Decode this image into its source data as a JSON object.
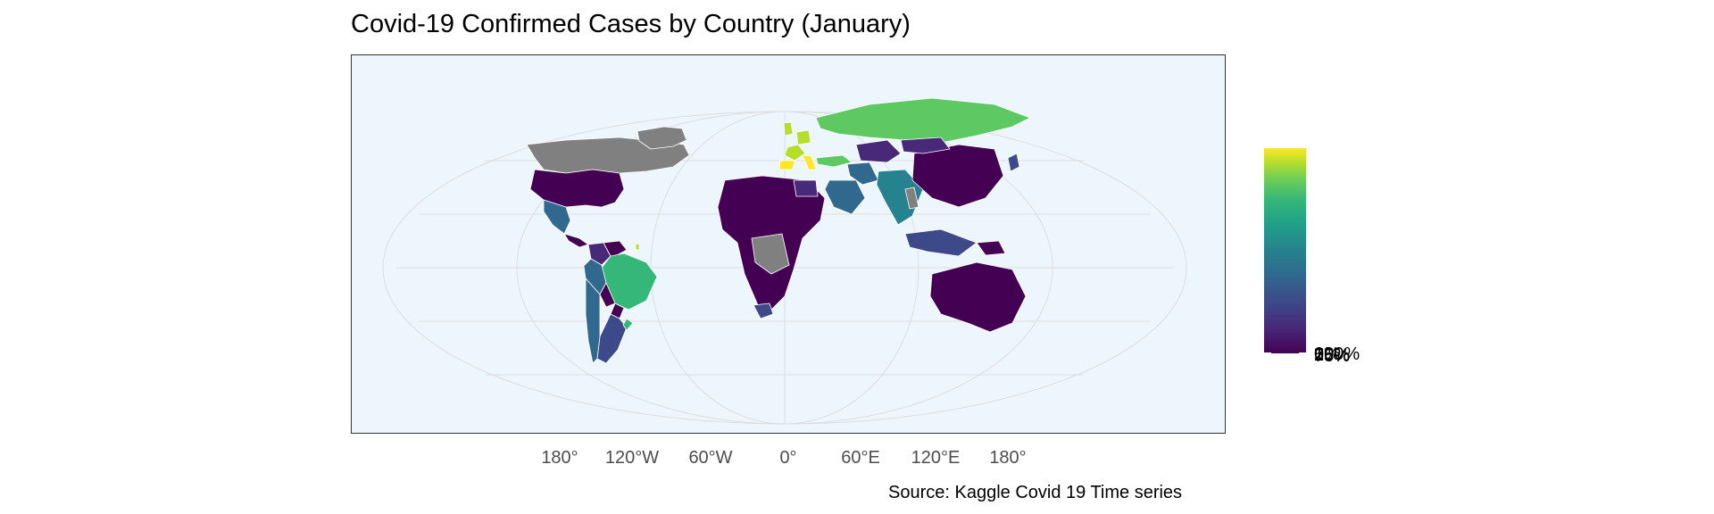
{
  "title": "Covid-19 Confirmed Cases by Country (January)",
  "caption": "Source: Kaggle Covid 19 Time series",
  "x_axis": {
    "tick_labels": [
      "180°",
      "120°W",
      "60°W",
      "0°",
      "60°E",
      "120°E",
      "180°"
    ]
  },
  "legend": {
    "tick_labels": [
      "0%",
      "25%",
      "50%",
      "75%",
      "100%"
    ],
    "colors": [
      "#440154",
      "#3b528b",
      "#21918c",
      "#5ec962",
      "#fde725"
    ]
  },
  "colors": {
    "ocean": "#eef6fd",
    "no_data": "#808080",
    "graticule": "#dddddd",
    "border": "#ffffff"
  },
  "chart_data": {
    "type": "heatmap",
    "map_type": "choropleth world map",
    "title": "Covid-19 Confirmed Cases by Country (January)",
    "caption": "Source: Kaggle Covid 19 Time series",
    "x_ticks": [
      "180°",
      "120°W",
      "60°W",
      "0°",
      "60°E",
      "120°E",
      "180°"
    ],
    "legend_labels": [
      "0%",
      "25%",
      "50%",
      "75%",
      "100%"
    ],
    "legend_position": "right",
    "regions": [
      {
        "name": "United States",
        "color": "#808080"
      },
      {
        "name": "Canada",
        "color": "#440154"
      },
      {
        "name": "Greenland",
        "color": "#808080"
      },
      {
        "name": "Mexico",
        "color": "#31688e"
      },
      {
        "name": "Central America",
        "color": "#440154"
      },
      {
        "name": "Colombia",
        "color": "#482878"
      },
      {
        "name": "Venezuela",
        "color": "#440154"
      },
      {
        "name": "Brazil",
        "color": "#35b779"
      },
      {
        "name": "Peru",
        "color": "#31688e"
      },
      {
        "name": "Bolivia",
        "color": "#440154"
      },
      {
        "name": "Paraguay",
        "color": "#440154"
      },
      {
        "name": "Argentina",
        "color": "#3e4989"
      },
      {
        "name": "Chile",
        "color": "#31688e"
      },
      {
        "name": "Uruguay",
        "color": "#35b779"
      },
      {
        "name": "French Guiana",
        "color": "#b5de2b"
      },
      {
        "name": "Spain",
        "color": "#fde725"
      },
      {
        "name": "France",
        "color": "#b5de2b"
      },
      {
        "name": "Italy",
        "color": "#fde725"
      },
      {
        "name": "Germany",
        "color": "#b5de2b"
      },
      {
        "name": "United Kingdom",
        "color": "#b5de2b"
      },
      {
        "name": "Russia",
        "color": "#5ec962"
      },
      {
        "name": "Turkey",
        "color": "#5ec962"
      },
      {
        "name": "Iran",
        "color": "#31688e"
      },
      {
        "name": "Saudi Arabia",
        "color": "#31688e"
      },
      {
        "name": "India",
        "color": "#26828e"
      },
      {
        "name": "China",
        "color": "#440154"
      },
      {
        "name": "Kazakhstan",
        "color": "#482878"
      },
      {
        "name": "Mongolia",
        "color": "#482878"
      },
      {
        "name": "Japan",
        "color": "#3e4989"
      },
      {
        "name": "Myanmar",
        "color": "#808080"
      },
      {
        "name": "Indonesia",
        "color": "#3e4989"
      },
      {
        "name": "Papua New Guinea",
        "color": "#440154"
      },
      {
        "name": "Australia",
        "color": "#440154"
      },
      {
        "name": "Africa (most countries)",
        "color": "#440154"
      },
      {
        "name": "DR Congo",
        "color": "#808080"
      },
      {
        "name": "South Africa",
        "color": "#3e4989"
      },
      {
        "name": "Egypt",
        "color": "#482878"
      }
    ]
  }
}
